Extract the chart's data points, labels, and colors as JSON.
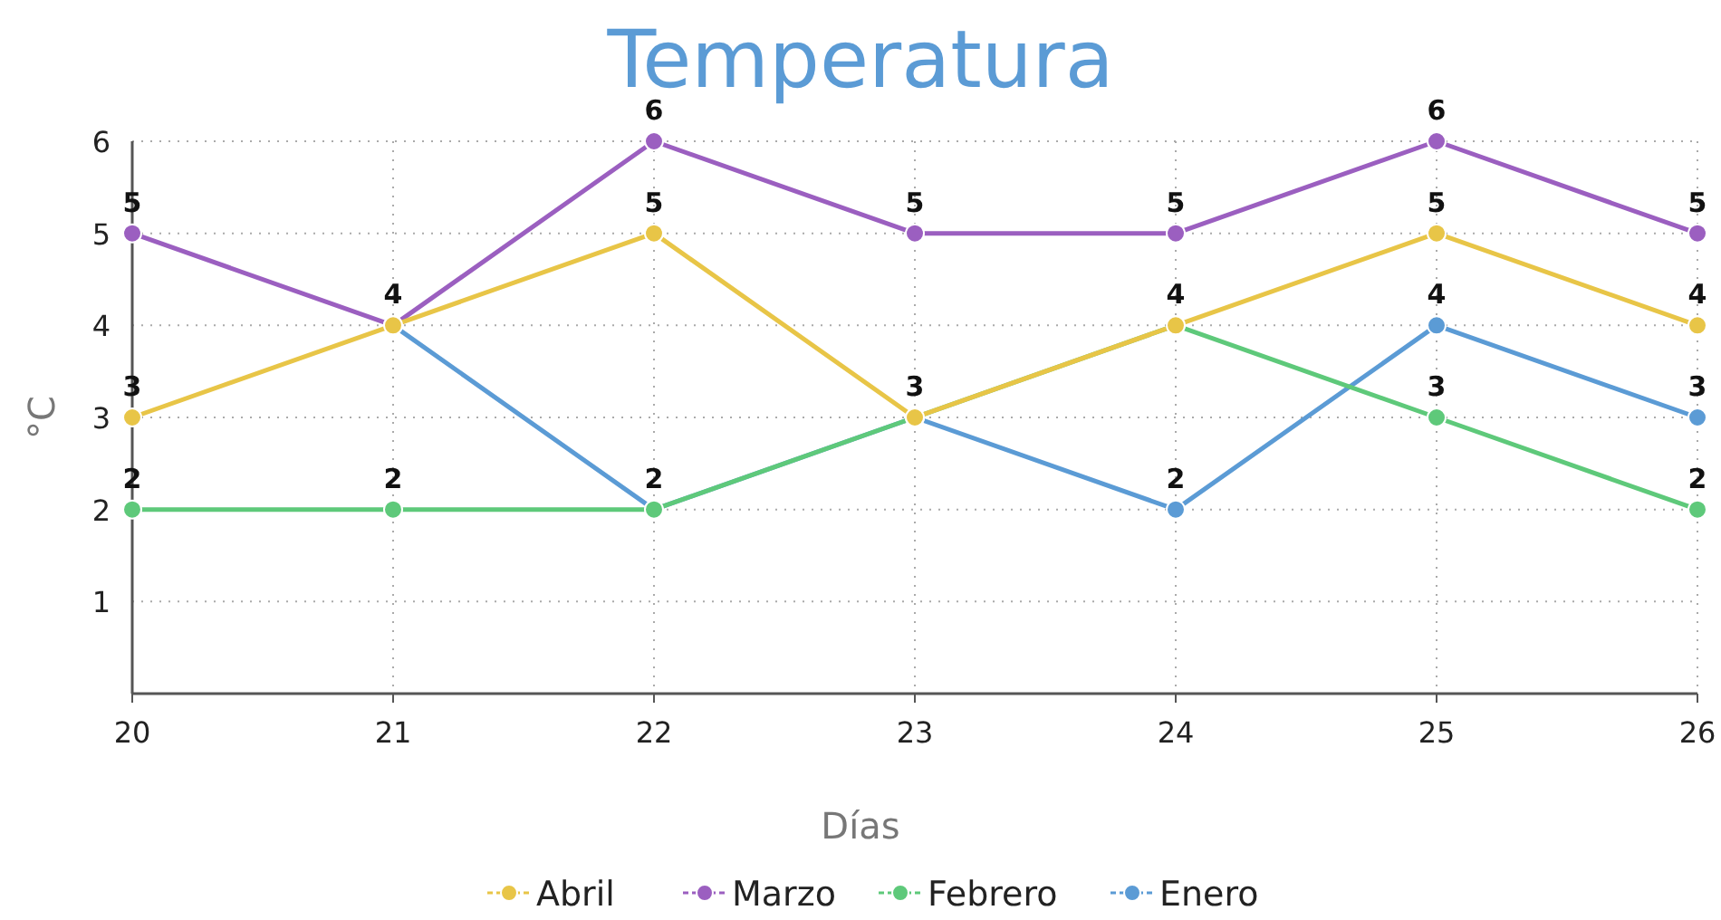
{
  "chart_data": {
    "type": "line",
    "title": "Temperatura",
    "xlabel": "Días",
    "ylabel": "°C",
    "x": [
      20,
      21,
      22,
      23,
      24,
      25,
      26
    ],
    "series": [
      {
        "name": "Abril",
        "color": "#e8c547",
        "values": [
          3,
          4,
          5,
          3,
          4,
          5,
          4
        ],
        "value_labels": [
          "3",
          "4",
          "5",
          "3",
          "4",
          "5",
          "4"
        ]
      },
      {
        "name": "Marzo",
        "color": "#9b5fc0",
        "values": [
          5,
          4,
          6,
          5,
          5,
          6,
          5
        ],
        "value_labels": [
          "5",
          null,
          "6",
          "5",
          "5",
          "6",
          "5"
        ]
      },
      {
        "name": "Febrero",
        "color": "#5ec97a",
        "values": [
          2,
          2,
          2,
          3,
          4,
          3,
          2
        ],
        "value_labels": [
          "2",
          "2",
          "2",
          null,
          null,
          "3",
          "2"
        ]
      },
      {
        "name": "Enero",
        "color": "#5b9bd5",
        "values": [
          null,
          4,
          2,
          3,
          2,
          4,
          3
        ],
        "value_labels": [
          null,
          null,
          null,
          null,
          "2",
          "4",
          "3"
        ]
      }
    ],
    "xlim": [
      20,
      26
    ],
    "xticks": [
      20,
      21,
      22,
      23,
      24,
      25,
      26
    ],
    "ylim": [
      0,
      6
    ],
    "yticks": [
      1,
      2,
      3,
      4,
      5,
      6
    ],
    "grid": true,
    "legend": "bottom",
    "marker": "circle",
    "line_style": "solid"
  }
}
